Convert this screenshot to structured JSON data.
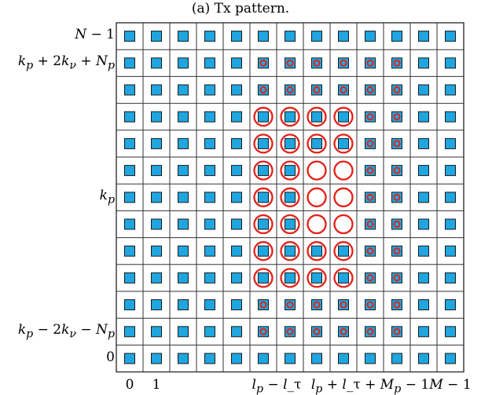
{
  "caption": "(a) Tx pattern.",
  "grid": {
    "columns": 13,
    "rows": 13
  },
  "colors": {
    "cell_fill": "#1fa6e0",
    "cell_stroke": "#1a1a1a",
    "circle": "#e32017",
    "grid_line": "#333333"
  },
  "row_labels": [
    {
      "row": 0,
      "text": "N − 1"
    },
    {
      "row": 1,
      "text": "k_p + 2k_ν + N_p"
    },
    {
      "row": 6,
      "text": "k_p"
    },
    {
      "row": 11,
      "text": "k_p − 2k_ν − N_p"
    },
    {
      "row": 12,
      "text": "0"
    }
  ],
  "col_labels": [
    {
      "col": 0,
      "text": "0"
    },
    {
      "col": 1,
      "text": "1"
    },
    {
      "col": 5.5,
      "text": "l_p − l_τ"
    },
    {
      "col": 9,
      "text": "l_p + l_τ + M_p − 1"
    },
    {
      "col": 12,
      "text": "M − 1"
    }
  ],
  "small_circle_region": {
    "row_range": [
      1,
      11
    ],
    "col_range": [
      5,
      10
    ]
  },
  "big_circle_region": {
    "row_range": [
      3,
      9
    ],
    "col_range": [
      5,
      8
    ]
  },
  "empty_cells": [
    [
      5,
      7
    ],
    [
      5,
      8
    ],
    [
      6,
      7
    ],
    [
      6,
      8
    ],
    [
      7,
      7
    ],
    [
      7,
      8
    ]
  ]
}
